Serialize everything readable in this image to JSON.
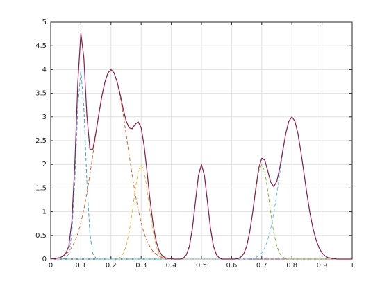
{
  "chart_data": {
    "type": "line",
    "x": [
      0,
      0.01,
      0.02,
      0.03,
      0.04,
      0.05,
      0.06,
      0.07,
      0.08,
      0.09,
      0.1,
      0.11,
      0.12,
      0.13,
      0.14,
      0.15,
      0.16,
      0.17,
      0.18,
      0.19,
      0.2,
      0.21,
      0.22,
      0.23,
      0.24,
      0.25,
      0.26,
      0.27,
      0.28,
      0.29,
      0.3,
      0.31,
      0.32,
      0.33,
      0.34,
      0.35,
      0.36,
      0.37,
      0.38,
      0.39,
      0.4,
      0.41,
      0.42,
      0.43,
      0.44,
      0.45,
      0.46,
      0.47,
      0.48,
      0.49,
      0.5,
      0.51,
      0.52,
      0.53,
      0.54,
      0.55,
      0.56,
      0.57,
      0.58,
      0.59,
      0.6,
      0.61,
      0.62,
      0.63,
      0.64,
      0.65,
      0.66,
      0.67,
      0.68,
      0.69,
      0.7,
      0.71,
      0.72,
      0.73,
      0.74,
      0.75,
      0.76,
      0.77,
      0.78,
      0.79,
      0.8,
      0.81,
      0.82,
      0.83,
      0.84,
      0.85,
      0.86,
      0.87,
      0.88,
      0.89,
      0.9,
      0.91,
      0.92,
      0.93,
      0.94,
      0.95,
      0.96,
      0.97,
      0.98,
      0.99,
      1
    ],
    "series": [
      {
        "color": "#2a9fd6",
        "dashed": true,
        "values": [
          0,
          0,
          0,
          0,
          0,
          0.02,
          0.11,
          0.54,
          1.64,
          3.2,
          4,
          3.2,
          1.64,
          0.54,
          0.11,
          0.02,
          0,
          0,
          0,
          0,
          0,
          0,
          0,
          0,
          0,
          0,
          0,
          0,
          0,
          0,
          0,
          0,
          0,
          0,
          0,
          0,
          0,
          0,
          0,
          0,
          0,
          0,
          0,
          0,
          0,
          0,
          0,
          0,
          0,
          0,
          0,
          0,
          0,
          0,
          0,
          0,
          0,
          0,
          0,
          0,
          0,
          0,
          0,
          0,
          0,
          0,
          0,
          0,
          0,
          0,
          0,
          0,
          0,
          0,
          0,
          0,
          0,
          0,
          0,
          0,
          0,
          0,
          0,
          0,
          0,
          0,
          0,
          0,
          0,
          0,
          0,
          0,
          0,
          0,
          0,
          0,
          0,
          0,
          0,
          0,
          0
        ]
      },
      {
        "color": "#d95319",
        "dashed": true,
        "values": [
          0.01,
          0.01,
          0.02,
          0.03,
          0.06,
          0.1,
          0.16,
          0.25,
          0.37,
          0.54,
          0.77,
          1.05,
          1.39,
          1.78,
          2.21,
          2.65,
          3.07,
          3.45,
          3.74,
          3.93,
          4,
          3.93,
          3.74,
          3.45,
          3.07,
          2.65,
          2.21,
          1.78,
          1.39,
          1.05,
          0.77,
          0.54,
          0.37,
          0.25,
          0.16,
          0.1,
          0.06,
          0.03,
          0.02,
          0.01,
          0.01,
          0,
          0,
          0,
          0,
          0,
          0,
          0,
          0,
          0,
          0,
          0,
          0,
          0,
          0,
          0,
          0,
          0,
          0,
          0,
          0,
          0,
          0,
          0,
          0,
          0,
          0,
          0,
          0,
          0,
          0,
          0,
          0,
          0,
          0,
          0,
          0,
          0,
          0,
          0,
          0,
          0,
          0,
          0,
          0,
          0,
          0,
          0,
          0,
          0,
          0,
          0,
          0,
          0,
          0,
          0,
          0,
          0,
          0,
          0,
          0
        ]
      },
      {
        "color": "#edb120",
        "dashed": true,
        "values": [
          0,
          0,
          0,
          0,
          0,
          0,
          0,
          0,
          0,
          0,
          0,
          0,
          0,
          0,
          0,
          0,
          0,
          0,
          0,
          0,
          0,
          0,
          0.01,
          0.04,
          0.11,
          0.27,
          0.56,
          0.97,
          1.45,
          1.85,
          2,
          1.85,
          1.45,
          0.97,
          0.56,
          0.27,
          0.11,
          0.04,
          0.01,
          0,
          0,
          0,
          0,
          0,
          0,
          0,
          0,
          0,
          0,
          0,
          0,
          0,
          0,
          0,
          0,
          0,
          0,
          0,
          0,
          0,
          0,
          0,
          0,
          0,
          0,
          0,
          0,
          0,
          0,
          0,
          0,
          0,
          0,
          0,
          0,
          0,
          0,
          0,
          0,
          0,
          0,
          0,
          0,
          0,
          0,
          0,
          0,
          0,
          0,
          0,
          0,
          0,
          0,
          0,
          0,
          0,
          0,
          0,
          0,
          0,
          0
        ]
      },
      {
        "color": "#7e2f8e",
        "dashed": true,
        "values": [
          0,
          0,
          0,
          0,
          0,
          0,
          0,
          0,
          0,
          0,
          0,
          0,
          0,
          0,
          0,
          0,
          0,
          0,
          0,
          0,
          0,
          0,
          0,
          0,
          0,
          0,
          0,
          0,
          0,
          0,
          0,
          0,
          0,
          0,
          0,
          0,
          0,
          0,
          0,
          0,
          0,
          0,
          0,
          0,
          0.02,
          0.09,
          0.27,
          0.65,
          1.21,
          1.76,
          2,
          1.76,
          1.21,
          0.65,
          0.27,
          0.09,
          0.02,
          0,
          0,
          0,
          0,
          0,
          0,
          0,
          0,
          0,
          0,
          0,
          0,
          0,
          0,
          0,
          0,
          0,
          0,
          0,
          0,
          0,
          0,
          0,
          0,
          0,
          0,
          0,
          0,
          0,
          0,
          0,
          0,
          0,
          0,
          0,
          0,
          0,
          0,
          0,
          0,
          0,
          0,
          0,
          0
        ]
      },
      {
        "color": "#77ac30",
        "dashed": true,
        "values": [
          0,
          0,
          0,
          0,
          0,
          0,
          0,
          0,
          0,
          0,
          0,
          0,
          0,
          0,
          0,
          0,
          0,
          0,
          0,
          0,
          0,
          0,
          0,
          0,
          0,
          0,
          0,
          0,
          0,
          0,
          0,
          0,
          0,
          0,
          0,
          0,
          0,
          0,
          0,
          0,
          0,
          0,
          0,
          0,
          0,
          0,
          0,
          0,
          0,
          0,
          0,
          0,
          0,
          0,
          0,
          0,
          0,
          0,
          0,
          0,
          0,
          0,
          0.01,
          0.04,
          0.11,
          0.27,
          0.56,
          0.97,
          1.45,
          1.85,
          2,
          1.85,
          1.45,
          0.97,
          0.56,
          0.27,
          0.11,
          0.04,
          0.01,
          0,
          0,
          0,
          0,
          0,
          0,
          0,
          0,
          0,
          0,
          0,
          0,
          0,
          0,
          0,
          0,
          0,
          0,
          0,
          0,
          0,
          0
        ]
      },
      {
        "color": "#4dbeee",
        "dashed": true,
        "values": [
          0,
          0,
          0,
          0,
          0,
          0,
          0,
          0,
          0,
          0,
          0,
          0,
          0,
          0,
          0,
          0,
          0,
          0,
          0,
          0,
          0,
          0,
          0,
          0,
          0,
          0,
          0,
          0,
          0,
          0,
          0,
          0,
          0,
          0,
          0,
          0,
          0,
          0,
          0,
          0,
          0,
          0,
          0,
          0,
          0,
          0,
          0,
          0,
          0,
          0,
          0,
          0,
          0,
          0,
          0,
          0,
          0,
          0,
          0,
          0,
          0,
          0,
          0,
          0,
          0,
          0,
          0.01,
          0.02,
          0.03,
          0.07,
          0.13,
          0.24,
          0.41,
          0.65,
          0.97,
          1.37,
          1.82,
          2.26,
          2.65,
          2.91,
          3,
          2.91,
          2.65,
          2.26,
          1.82,
          1.37,
          0.97,
          0.65,
          0.41,
          0.24,
          0.13,
          0.07,
          0.03,
          0.02,
          0.01,
          0,
          0,
          0,
          0,
          0,
          0
        ]
      },
      {
        "color": "#8a1a4a",
        "dashed": false,
        "values": [
          0.01,
          0.01,
          0.02,
          0.03,
          0.06,
          0.12,
          0.27,
          0.79,
          2.01,
          3.74,
          4.77,
          4.25,
          3.03,
          2.32,
          2.32,
          2.67,
          3.07,
          3.45,
          3.74,
          3.93,
          4,
          3.93,
          3.75,
          3.49,
          3.18,
          2.92,
          2.77,
          2.75,
          2.84,
          2.9,
          2.77,
          2.39,
          1.82,
          1.22,
          0.72,
          0.37,
          0.17,
          0.07,
          0.03,
          0.01,
          0.01,
          0,
          0,
          0,
          0.02,
          0.09,
          0.27,
          0.65,
          1.21,
          1.76,
          2,
          1.76,
          1.21,
          0.65,
          0.27,
          0.09,
          0.02,
          0,
          0,
          0,
          0,
          0,
          0.01,
          0.04,
          0.11,
          0.27,
          0.57,
          0.99,
          1.48,
          1.92,
          2.13,
          2.09,
          1.86,
          1.62,
          1.53,
          1.64,
          1.93,
          2.3,
          2.66,
          2.91,
          3,
          2.91,
          2.65,
          2.26,
          1.82,
          1.37,
          0.97,
          0.65,
          0.41,
          0.24,
          0.13,
          0.07,
          0.03,
          0.02,
          0.01,
          0,
          0,
          0,
          0,
          0,
          0
        ]
      }
    ],
    "xlim": [
      0,
      1
    ],
    "xticks": [
      0,
      0.1,
      0.2,
      0.3,
      0.4,
      0.5,
      0.6,
      0.7,
      0.8,
      0.9,
      1
    ],
    "ylim": [
      0,
      5
    ],
    "yticks": [
      0,
      0.5,
      1,
      1.5,
      2,
      2.5,
      3,
      3.5,
      4,
      4.5,
      5
    ],
    "grid": true
  }
}
